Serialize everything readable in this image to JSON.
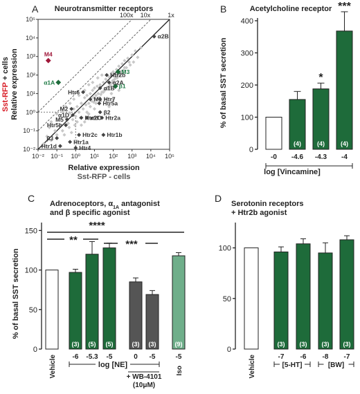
{
  "panels": {
    "A": "A",
    "B": "B",
    "C": "C",
    "D": "D"
  },
  "colors": {
    "dark_green": "#1e6b3a",
    "light_green": "#6fae8a",
    "dark_grey": "#555555",
    "light_grey": "#c8c8c8",
    "gene_dark": "#444444",
    "m4_red": "#a0183a",
    "green_label": "#1f7a45",
    "red_text": "#d81b25"
  },
  "chart_data": [
    {
      "panel": "A",
      "type": "scatter",
      "title": "Neurotransmitter receptors",
      "xlabel": "Relative expression",
      "xlabel2": "Sst-RFP - cells",
      "ylabel": "Relative expression",
      "ylabel2_red": "Sst-RFP",
      "ylabel2_rest": "+ cells",
      "x_scale": "log",
      "y_scale": "log",
      "xlim": [
        0.01,
        100000
      ],
      "ylim": [
        0.01,
        100000
      ],
      "x_ticks": [
        "10⁻²",
        "10⁻¹",
        "10⁰",
        "10¹",
        "10²",
        "10³",
        "10⁴",
        "10⁵"
      ],
      "y_ticks": [
        "10⁻²",
        "10⁻¹",
        "10⁰",
        "10¹",
        "10²",
        "10³",
        "10⁴",
        "10⁵"
      ],
      "diagonals": [
        {
          "label": "100x",
          "factor": 100
        },
        {
          "label": "10x",
          "factor": 10
        },
        {
          "label": "1x",
          "factor": 1
        }
      ],
      "highlighted": [
        {
          "name": "α2B",
          "x": 15000,
          "y": 12000,
          "group": "dark"
        },
        {
          "name": "M4",
          "x": 0.035,
          "y": 600,
          "group": "red"
        },
        {
          "name": "M3",
          "x": 180,
          "y": 150,
          "group": "green"
        },
        {
          "name": "α1A",
          "x": 0.12,
          "y": 40,
          "group": "green"
        },
        {
          "name": "β1",
          "x": 130,
          "y": 25,
          "group": "green"
        },
        {
          "name": "Htr2b",
          "x": 45,
          "y": 100,
          "group": "dark"
        },
        {
          "name": "α2A",
          "x": 60,
          "y": 40,
          "group": "dark"
        },
        {
          "name": "Htr6",
          "x": 2.5,
          "y": 12,
          "group": "dark"
        },
        {
          "name": "α1B",
          "x": 20,
          "y": 20,
          "group": "dark"
        },
        {
          "name": "M1",
          "x": 6,
          "y": 5,
          "group": "dark"
        },
        {
          "name": "Htr7",
          "x": 20,
          "y": 5,
          "group": "dark"
        },
        {
          "name": "Htr5a",
          "x": 18,
          "y": 3,
          "group": "dark"
        },
        {
          "name": "M2",
          "x": 0.6,
          "y": 1.5,
          "group": "dark"
        },
        {
          "name": "α1D",
          "x": 0.7,
          "y": 0.7,
          "group": "dark"
        },
        {
          "name": "M5",
          "x": 0.35,
          "y": 0.4,
          "group": "dark"
        },
        {
          "name": "β2",
          "x": 20,
          "y": 1,
          "group": "dark"
        },
        {
          "name": "Htr2a",
          "x": 25,
          "y": 0.5,
          "group": "dark"
        },
        {
          "name": "Htr1f",
          "x": 2,
          "y": 0.5,
          "group": "dark"
        },
        {
          "name": "α2C",
          "x": 4,
          "y": 0.5,
          "group": "dark"
        },
        {
          "name": "Htr5b",
          "x": 0.3,
          "y": 0.2,
          "group": "dark"
        },
        {
          "name": "Htr2c",
          "x": 1.5,
          "y": 0.06,
          "group": "dark"
        },
        {
          "name": "Htr1b",
          "x": 30,
          "y": 0.06,
          "group": "dark"
        },
        {
          "name": "β3",
          "x": 0.1,
          "y": 0.04,
          "group": "dark"
        },
        {
          "name": "Htr1a",
          "x": 0.5,
          "y": 0.025,
          "group": "dark"
        },
        {
          "name": "Htr1d",
          "x": 0.15,
          "y": 0.015,
          "group": "dark"
        },
        {
          "name": "Htr4",
          "x": 1,
          "y": 0.012,
          "group": "dark"
        }
      ],
      "background": [
        [
          0.02,
          0.02
        ],
        [
          0.03,
          0.05
        ],
        [
          0.05,
          0.03
        ],
        [
          0.08,
          0.1
        ],
        [
          0.1,
          0.06
        ],
        [
          0.15,
          0.2
        ],
        [
          0.2,
          0.1
        ],
        [
          0.3,
          0.5
        ],
        [
          0.4,
          0.25
        ],
        [
          0.5,
          0.9
        ],
        [
          0.7,
          0.4
        ],
        [
          0.8,
          1.5
        ],
        [
          1,
          0.6
        ],
        [
          1.2,
          2
        ],
        [
          1.5,
          1
        ],
        [
          2,
          3
        ],
        [
          2.5,
          1.5
        ],
        [
          3,
          6
        ],
        [
          3.5,
          2.5
        ],
        [
          4,
          8
        ],
        [
          5,
          3
        ],
        [
          6,
          10
        ],
        [
          7,
          4
        ],
        [
          8,
          15
        ],
        [
          9,
          6
        ],
        [
          10,
          20
        ],
        [
          12,
          8
        ],
        [
          14,
          25
        ],
        [
          16,
          10
        ],
        [
          20,
          30
        ],
        [
          25,
          12
        ],
        [
          30,
          40
        ],
        [
          35,
          15
        ],
        [
          40,
          60
        ],
        [
          50,
          20
        ],
        [
          60,
          80
        ],
        [
          70,
          30
        ],
        [
          80,
          120
        ],
        [
          90,
          40
        ],
        [
          100,
          150
        ],
        [
          120,
          60
        ],
        [
          150,
          200
        ],
        [
          180,
          90
        ],
        [
          200,
          300
        ],
        [
          250,
          120
        ],
        [
          300,
          400
        ],
        [
          350,
          180
        ],
        [
          400,
          600
        ],
        [
          500,
          250
        ],
        [
          600,
          800
        ],
        [
          800,
          350
        ],
        [
          1000,
          1200
        ],
        [
          1200,
          500
        ],
        [
          1500,
          2000
        ],
        [
          2000,
          900
        ],
        [
          3000,
          3000
        ],
        [
          0.5,
          3
        ],
        [
          0.8,
          5
        ],
        [
          1.5,
          8
        ],
        [
          3,
          15
        ],
        [
          5,
          30
        ],
        [
          8,
          40
        ],
        [
          15,
          70
        ],
        [
          25,
          100
        ],
        [
          0.2,
          1
        ],
        [
          0.3,
          2
        ],
        [
          2,
          0.2
        ],
        [
          5,
          0.8
        ],
        [
          10,
          1.5
        ],
        [
          40,
          5
        ],
        [
          80,
          10
        ],
        [
          150,
          30
        ],
        [
          60,
          2
        ],
        [
          100,
          5
        ],
        [
          200,
          15
        ],
        [
          1.2,
          0.3
        ],
        [
          0.6,
          0.08
        ],
        [
          3,
          0.3
        ],
        [
          8,
          0.5
        ],
        [
          0.05,
          0.3
        ],
        [
          0.1,
          0.8
        ],
        [
          0.04,
          0.15
        ],
        [
          12,
          3
        ],
        [
          18,
          6
        ],
        [
          30,
          12
        ],
        [
          45,
          18
        ],
        [
          65,
          25
        ],
        [
          110,
          45
        ],
        [
          160,
          70
        ],
        [
          220,
          100
        ],
        [
          0.25,
          0.06
        ],
        [
          0.45,
          0.15
        ],
        [
          0.9,
          0.2
        ],
        [
          1.8,
          0.5
        ],
        [
          4,
          1
        ],
        [
          6,
          2
        ],
        [
          9,
          3.5
        ],
        [
          13,
          5
        ],
        [
          22,
          9
        ],
        [
          33,
          14
        ],
        [
          48,
          22
        ],
        [
          70,
          35
        ],
        [
          95,
          50
        ],
        [
          130,
          80
        ],
        [
          170,
          110
        ],
        [
          260,
          160
        ],
        [
          400,
          250
        ],
        [
          700,
          500
        ]
      ]
    },
    {
      "panel": "B",
      "type": "bar",
      "title": "Acetylcholine receptor",
      "ylabel": "% of basal SST secretion",
      "xlabel": "log [Vincamine]",
      "categories": [
        "-0",
        "-4.6",
        "-4.3",
        "-4"
      ],
      "values": [
        100,
        155,
        188,
        368
      ],
      "errors": [
        0,
        25,
        18,
        60
      ],
      "n": [
        "",
        "(4)",
        "(4)",
        "(4)"
      ],
      "significance": [
        "",
        "",
        "*",
        "***"
      ],
      "fills": [
        "white",
        "dark",
        "dark",
        "dark"
      ],
      "ylim": [
        0,
        400
      ],
      "yticks": [
        0,
        100,
        200,
        300,
        400
      ]
    },
    {
      "panel": "C",
      "type": "bar",
      "title_line1": "Adrenoceptors, α",
      "title_sub": "1A",
      "title_line1_end": " antagonist",
      "title_line2": "and β specific agonist",
      "ylabel": "% of basal SST secretion",
      "categories": [
        "Vehicle",
        "-6",
        "-5.3",
        "-5",
        "0",
        "-5",
        "-5"
      ],
      "values": [
        100,
        97,
        120,
        128,
        85,
        69,
        118
      ],
      "errors": [
        0,
        4,
        16,
        6,
        5,
        5,
        4
      ],
      "n": [
        "",
        "(3)",
        "(5)",
        "(5)",
        "(3)",
        "(3)",
        "(9)"
      ],
      "fills": [
        "white",
        "dark",
        "dark",
        "dark",
        "mid",
        "mid",
        "light"
      ],
      "group_label": "log [NE]",
      "wb_label": "+ WB-4101",
      "wb_conc": "(10μM)",
      "iso_label": "Iso",
      "significance": [
        {
          "text": "**",
          "from": 0,
          "to": 2
        },
        {
          "text": "****",
          "from": 0,
          "to": 6
        },
        {
          "text": "***",
          "from": 3,
          "to": 5
        }
      ],
      "ylim": [
        0,
        150
      ],
      "yticks": [
        0,
        50,
        100,
        150
      ]
    },
    {
      "panel": "D",
      "type": "bar",
      "title_line1": "Serotonin receptors",
      "title_line2": "+ Htr2b agonist",
      "categories": [
        "Vehicle",
        "-7",
        "-6",
        "-8",
        "-7"
      ],
      "values": [
        100,
        96,
        104,
        95,
        108
      ],
      "errors": [
        0,
        5,
        5,
        10,
        4
      ],
      "n": [
        "",
        "(3)",
        "(3)",
        "(3)",
        "(3)"
      ],
      "fills": [
        "white",
        "dark",
        "dark",
        "dark",
        "dark"
      ],
      "groups": [
        {
          "label": "[5-HT]",
          "from": 1,
          "to": 2
        },
        {
          "label": "[BW]",
          "from": 3,
          "to": 4
        }
      ],
      "ylim": [
        0,
        125
      ],
      "yticks": [
        0,
        50,
        100
      ]
    }
  ]
}
